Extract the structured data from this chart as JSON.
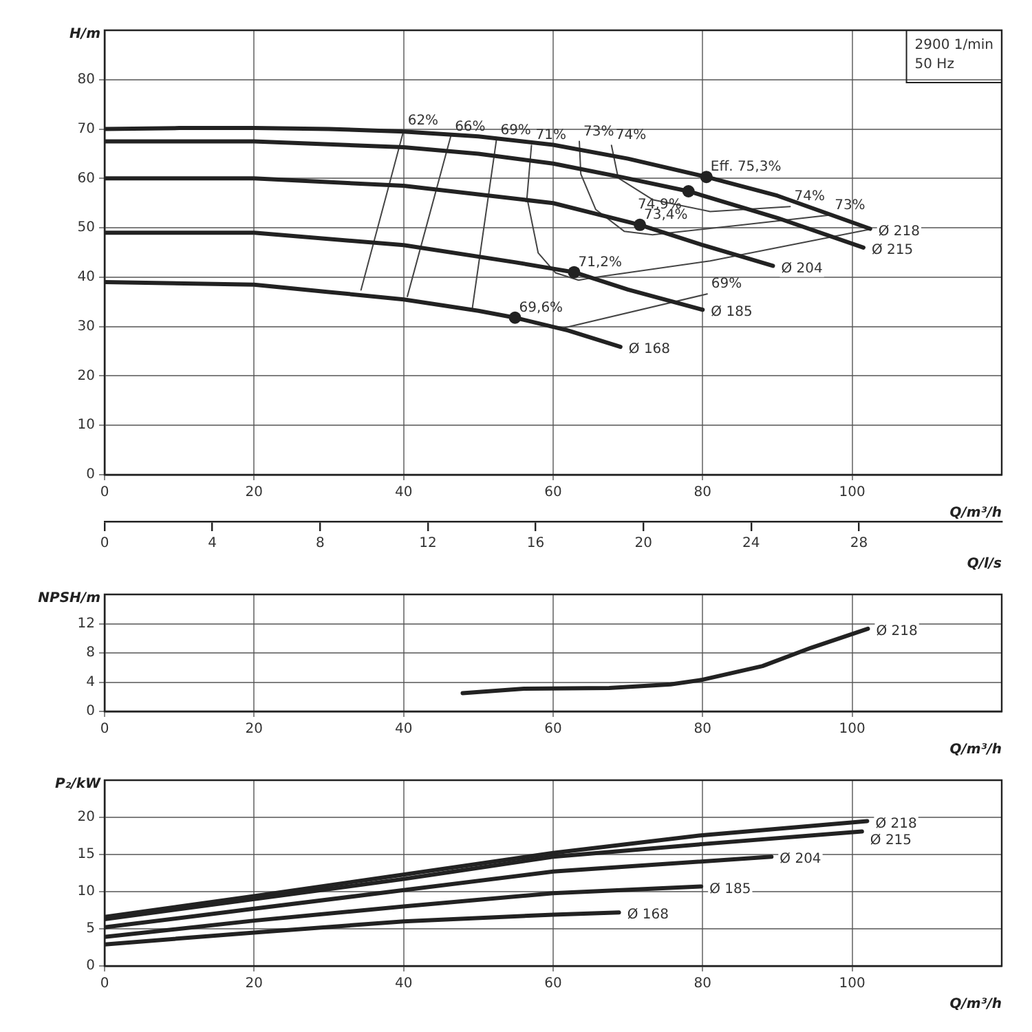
{
  "chart_data": [
    {
      "type": "line",
      "xlabel": "Q/m³/h",
      "ylabel": "H/m",
      "x2label": "Q/l/s",
      "xlim": [
        0,
        120
      ],
      "xticks": [
        0,
        20,
        40,
        60,
        80,
        100
      ],
      "x2lim": [
        0,
        33.3
      ],
      "x2ticks": [
        0,
        4,
        8,
        12,
        16,
        20,
        24,
        28
      ],
      "ylim": [
        0,
        90
      ],
      "yticks": [
        0,
        10,
        20,
        30,
        40,
        50,
        60,
        70,
        80
      ],
      "grid": true,
      "legend": false,
      "annotations": [
        "2900 1/min",
        "50 Hz",
        {
          "text": "62%",
          "x": 40.0,
          "y": 69.7
        },
        {
          "text": "66%",
          "x": 46.3,
          "y": 68.5
        },
        {
          "text": "69%",
          "x": 52.4,
          "y": 67.7
        },
        {
          "text": "71%",
          "x": 57.1,
          "y": 66.7
        },
        {
          "text": "73%",
          "x": 63.5,
          "y": 67.5
        },
        {
          "text": "74%",
          "x": 67.8,
          "y": 66.7
        },
        {
          "text": "Eff. 75,3%",
          "x": 80.5,
          "y": 60.3
        },
        {
          "text": "74,9%",
          "x": 78.1,
          "y": 57.4
        },
        {
          "text": "73,4%",
          "x": 71.6,
          "y": 50.6
        },
        {
          "text": "71,2%",
          "x": 62.8,
          "y": 41.0
        },
        {
          "text": "69,6%",
          "x": 54.9,
          "y": 31.8
        },
        {
          "text": "74%",
          "x": 91.7,
          "y": 54.3
        },
        {
          "text": "73%",
          "x": 97.1,
          "y": 52.6
        },
        {
          "text": "69%",
          "x": 80.6,
          "y": 36.6
        }
      ],
      "series": [
        {
          "name": "Ø 218",
          "color": "#222222",
          "x": [
            0,
            10,
            20,
            30,
            40,
            50,
            60,
            70,
            80.5,
            90,
            102.4
          ],
          "values": [
            70,
            70.2,
            70.2,
            70,
            69.5,
            68.5,
            66.8,
            64,
            60.3,
            56.5,
            49.8
          ]
        },
        {
          "name": "Ø 215",
          "color": "#222222",
          "x": [
            0,
            20,
            40,
            50,
            60,
            70,
            78.1,
            90,
            101.5
          ],
          "values": [
            67.5,
            67.5,
            66.3,
            65,
            63,
            60,
            57.4,
            52,
            46
          ]
        },
        {
          "name": "Ø 204",
          "color": "#222222",
          "x": [
            0,
            20,
            40,
            60,
            71.6,
            80,
            89.4
          ],
          "values": [
            60,
            60,
            58.5,
            55,
            50.6,
            46.5,
            42.3
          ]
        },
        {
          "name": "Ø 185",
          "color": "#222222",
          "x": [
            0,
            20,
            40,
            55,
            62.8,
            70,
            80
          ],
          "values": [
            49,
            49,
            46.5,
            43,
            41.0,
            37.5,
            33.4
          ]
        },
        {
          "name": "Ø 168",
          "color": "#222222",
          "x": [
            0,
            20,
            30,
            40,
            50,
            54.9,
            62,
            69
          ],
          "values": [
            39,
            38.5,
            37,
            35.5,
            33.2,
            31.8,
            29.2,
            25.9
          ]
        },
        {
          "type": "scatter",
          "marker": "circle",
          "color": "#222222",
          "x": [
            80.5,
            78.1,
            71.6,
            62.8,
            54.9
          ],
          "values": [
            60.3,
            57.4,
            50.6,
            41.0,
            31.8
          ]
        },
        {
          "color": "#444444",
          "x": [
            40.0,
            34.3
          ],
          "values": [
            69.7,
            37.4
          ]
        },
        {
          "color": "#444444",
          "x": [
            46.3,
            40.5
          ],
          "values": [
            68.5,
            36.1
          ]
        },
        {
          "color": "#444444",
          "x": [
            52.4,
            49.2
          ],
          "values": [
            67.7,
            33.8
          ]
        },
        {
          "color": "#444444",
          "x": [
            57.1,
            56.5,
            58.0,
            60.3,
            63.4,
            65.7,
            81,
            102.4
          ],
          "values": [
            66.7,
            56.1,
            44.9,
            40.9,
            39.4,
            40,
            43.3,
            49.7
          ]
        },
        {
          "color": "#444444",
          "x": [
            63.5,
            63.7,
            65.7,
            69.5,
            73.3,
            84.8,
            97.1
          ],
          "values": [
            67.5,
            60.9,
            53.7,
            49.3,
            48.6,
            50.5,
            52.6
          ]
        },
        {
          "color": "#444444",
          "x": [
            67.8,
            68.7,
            73.3,
            81,
            91.7
          ],
          "values": [
            66.7,
            60.1,
            55.7,
            53.3,
            54.3
          ]
        },
        {
          "color": "#444444",
          "x": [
            61.1,
            80.6
          ],
          "values": [
            29.6,
            36.6
          ]
        }
      ]
    },
    {
      "type": "line",
      "xlabel": "Q/m³/h",
      "ylabel": "NPSH/m",
      "xlim": [
        0,
        120
      ],
      "xticks": [
        0,
        20,
        40,
        60,
        80,
        100
      ],
      "ylim": [
        0,
        16
      ],
      "yticks": [
        0,
        4,
        8,
        12
      ],
      "grid": true,
      "legend": false,
      "series": [
        {
          "name": "Ø 218",
          "color": "#222222",
          "x": [
            47.9,
            56.1,
            67.5,
            75.7,
            79.8,
            88,
            94.5,
            102.1
          ],
          "values": [
            2.5,
            3.1,
            3.2,
            3.7,
            4.3,
            6.2,
            8.7,
            11.3
          ]
        }
      ]
    },
    {
      "type": "line",
      "xlabel": "Q/m³/h",
      "ylabel": "P₂/kW",
      "xlim": [
        0,
        120
      ],
      "xticks": [
        0,
        20,
        40,
        60,
        80,
        100
      ],
      "ylim": [
        0,
        25
      ],
      "yticks": [
        0,
        5,
        10,
        15,
        20
      ],
      "grid": true,
      "legend": false,
      "series": [
        {
          "name": "Ø 218",
          "color": "#222222",
          "x": [
            0,
            20,
            40,
            60,
            80,
            102
          ],
          "values": [
            6.6,
            9.4,
            12.3,
            15.2,
            17.6,
            19.5
          ]
        },
        {
          "name": "Ø 215",
          "color": "#222222",
          "x": [
            0,
            20,
            40,
            60,
            80,
            101.3
          ],
          "values": [
            6.3,
            9.0,
            11.7,
            14.7,
            16.4,
            18.1
          ]
        },
        {
          "name": "Ø 204",
          "color": "#222222",
          "x": [
            0,
            20,
            40,
            60,
            89.2
          ],
          "values": [
            5.2,
            7.7,
            10.2,
            12.7,
            14.7
          ]
        },
        {
          "name": "Ø 185",
          "color": "#222222",
          "x": [
            0,
            20,
            40,
            60,
            79.8
          ],
          "values": [
            3.9,
            6.1,
            8.0,
            9.8,
            10.7
          ]
        },
        {
          "name": "Ø 168",
          "color": "#222222",
          "x": [
            0,
            20,
            40,
            60,
            68.8
          ],
          "values": [
            2.9,
            4.5,
            6.0,
            6.9,
            7.2
          ]
        }
      ]
    }
  ]
}
